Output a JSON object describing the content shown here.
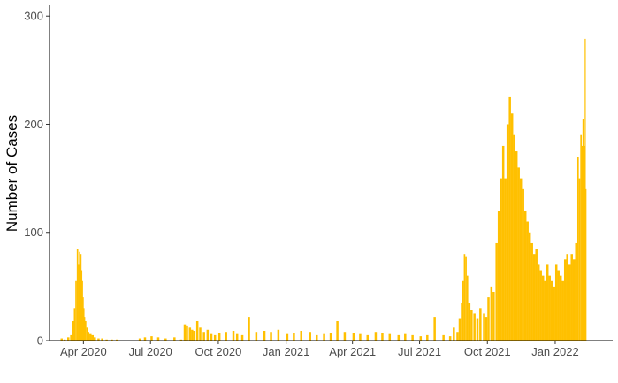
{
  "chart_data": {
    "type": "bar",
    "title": "",
    "xlabel": "",
    "ylabel": "Number of Cases",
    "ylim": [
      0,
      310
    ],
    "xlim": [
      "2020-02-15",
      "2022-03-20"
    ],
    "y_ticks": [
      0,
      100,
      200,
      300
    ],
    "x_ticks": [
      {
        "date": "2020-04-01",
        "label": "Apr 2020"
      },
      {
        "date": "2020-07-01",
        "label": "Jul 2020"
      },
      {
        "date": "2020-10-01",
        "label": "Oct 2020"
      },
      {
        "date": "2021-01-01",
        "label": "Jan 2021"
      },
      {
        "date": "2021-04-01",
        "label": "Apr 2021"
      },
      {
        "date": "2021-07-01",
        "label": "Jul 2021"
      },
      {
        "date": "2021-10-01",
        "label": "Oct 2021"
      },
      {
        "date": "2022-01-01",
        "label": "Jan 2022"
      }
    ],
    "grid": false,
    "legend": "none",
    "bar_color": "#FFC000",
    "series": [
      {
        "x": [
          "2020-03-01",
          "2020-03-05",
          "2020-03-10",
          "2020-03-14",
          "2020-03-17",
          "2020-03-19",
          "2020-03-21",
          "2020-03-23",
          "2020-03-25",
          "2020-03-26",
          "2020-03-27",
          "2020-03-28",
          "2020-03-29",
          "2020-03-30",
          "2020-03-31",
          "2020-04-01",
          "2020-04-02",
          "2020-04-03",
          "2020-04-05",
          "2020-04-07",
          "2020-04-09",
          "2020-04-12",
          "2020-04-15",
          "2020-04-20",
          "2020-04-25",
          "2020-05-01",
          "2020-05-08",
          "2020-05-15",
          "2020-06-15",
          "2020-06-22",
          "2020-07-01",
          "2020-07-10",
          "2020-07-20",
          "2020-08-01",
          "2020-08-10",
          "2020-08-15",
          "2020-08-18",
          "2020-08-22",
          "2020-08-25",
          "2020-08-28",
          "2020-09-01",
          "2020-09-05",
          "2020-09-10",
          "2020-09-15",
          "2020-09-20",
          "2020-09-25",
          "2020-10-01",
          "2020-10-10",
          "2020-10-20",
          "2020-10-25",
          "2020-11-01",
          "2020-11-10",
          "2020-11-20",
          "2020-12-01",
          "2020-12-10",
          "2020-12-20",
          "2021-01-01",
          "2021-01-10",
          "2021-01-20",
          "2021-02-01",
          "2021-02-10",
          "2021-02-20",
          "2021-03-01",
          "2021-03-10",
          "2021-03-20",
          "2021-04-01",
          "2021-04-10",
          "2021-04-20",
          "2021-05-01",
          "2021-05-10",
          "2021-05-20",
          "2021-06-01",
          "2021-06-10",
          "2021-06-20",
          "2021-07-01",
          "2021-07-10",
          "2021-07-20",
          "2021-08-01",
          "2021-08-10",
          "2021-08-15",
          "2021-08-20",
          "2021-08-23",
          "2021-08-26",
          "2021-08-28",
          "2021-08-30",
          "2021-09-01",
          "2021-09-03",
          "2021-09-05",
          "2021-09-08",
          "2021-09-12",
          "2021-09-16",
          "2021-09-20",
          "2021-09-25",
          "2021-09-28",
          "2021-10-01",
          "2021-10-05",
          "2021-10-08",
          "2021-10-12",
          "2021-10-15",
          "2021-10-18",
          "2021-10-21",
          "2021-10-24",
          "2021-10-27",
          "2021-10-30",
          "2021-11-02",
          "2021-11-05",
          "2021-11-08",
          "2021-11-11",
          "2021-11-14",
          "2021-11-17",
          "2021-11-20",
          "2021-11-23",
          "2021-11-26",
          "2021-11-29",
          "2021-12-02",
          "2021-12-05",
          "2021-12-08",
          "2021-12-11",
          "2021-12-14",
          "2021-12-17",
          "2021-12-20",
          "2021-12-23",
          "2021-12-26",
          "2021-12-29",
          "2022-01-01",
          "2022-01-04",
          "2022-01-07",
          "2022-01-10",
          "2022-01-13",
          "2022-01-16",
          "2022-01-19",
          "2022-01-22",
          "2022-01-25",
          "2022-01-28",
          "2022-01-31",
          "2022-02-02",
          "2022-02-04",
          "2022-02-06",
          "2022-02-07",
          "2022-02-08",
          "2022-02-09",
          "2022-02-10",
          "2022-02-11"
        ],
        "y": [
          2,
          1,
          3,
          5,
          18,
          30,
          55,
          85,
          70,
          82,
          76,
          80,
          65,
          55,
          40,
          30,
          22,
          18,
          12,
          8,
          6,
          5,
          3,
          2,
          2,
          1,
          1,
          1,
          2,
          3,
          4,
          3,
          2,
          3,
          1,
          15,
          14,
          12,
          10,
          9,
          18,
          12,
          8,
          10,
          6,
          5,
          7,
          8,
          9,
          6,
          5,
          22,
          8,
          9,
          8,
          10,
          6,
          7,
          9,
          8,
          5,
          6,
          7,
          18,
          8,
          7,
          6,
          5,
          8,
          7,
          6,
          5,
          6,
          5,
          4,
          5,
          22,
          5,
          4,
          12,
          8,
          20,
          35,
          55,
          80,
          78,
          60,
          35,
          28,
          25,
          20,
          30,
          25,
          22,
          40,
          50,
          45,
          90,
          120,
          150,
          180,
          150,
          200,
          225,
          210,
          190,
          175,
          160,
          150,
          140,
          120,
          110,
          100,
          90,
          80,
          85,
          70,
          65,
          60,
          55,
          70,
          60,
          55,
          50,
          70,
          65,
          60,
          55,
          75,
          80,
          70,
          80,
          75,
          90,
          170,
          150,
          190,
          180,
          205,
          160,
          180,
          279,
          140
        ]
      }
    ]
  }
}
